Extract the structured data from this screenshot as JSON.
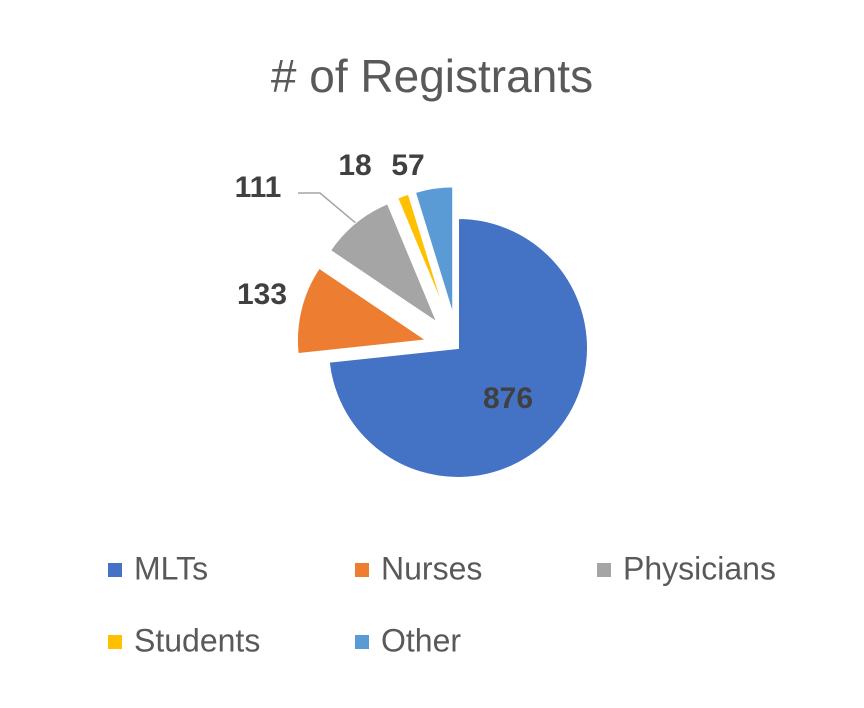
{
  "chart_data": {
    "type": "pie",
    "title": "# of Registrants",
    "categories": [
      "MLTs",
      "Nurses",
      "Physicians",
      "Students",
      "Other"
    ],
    "values": [
      876,
      133,
      111,
      18,
      57
    ],
    "colors": [
      "#4472c4",
      "#ed7d31",
      "#a5a5a5",
      "#ffc000",
      "#5b9bd5"
    ],
    "legend": "bottom"
  }
}
